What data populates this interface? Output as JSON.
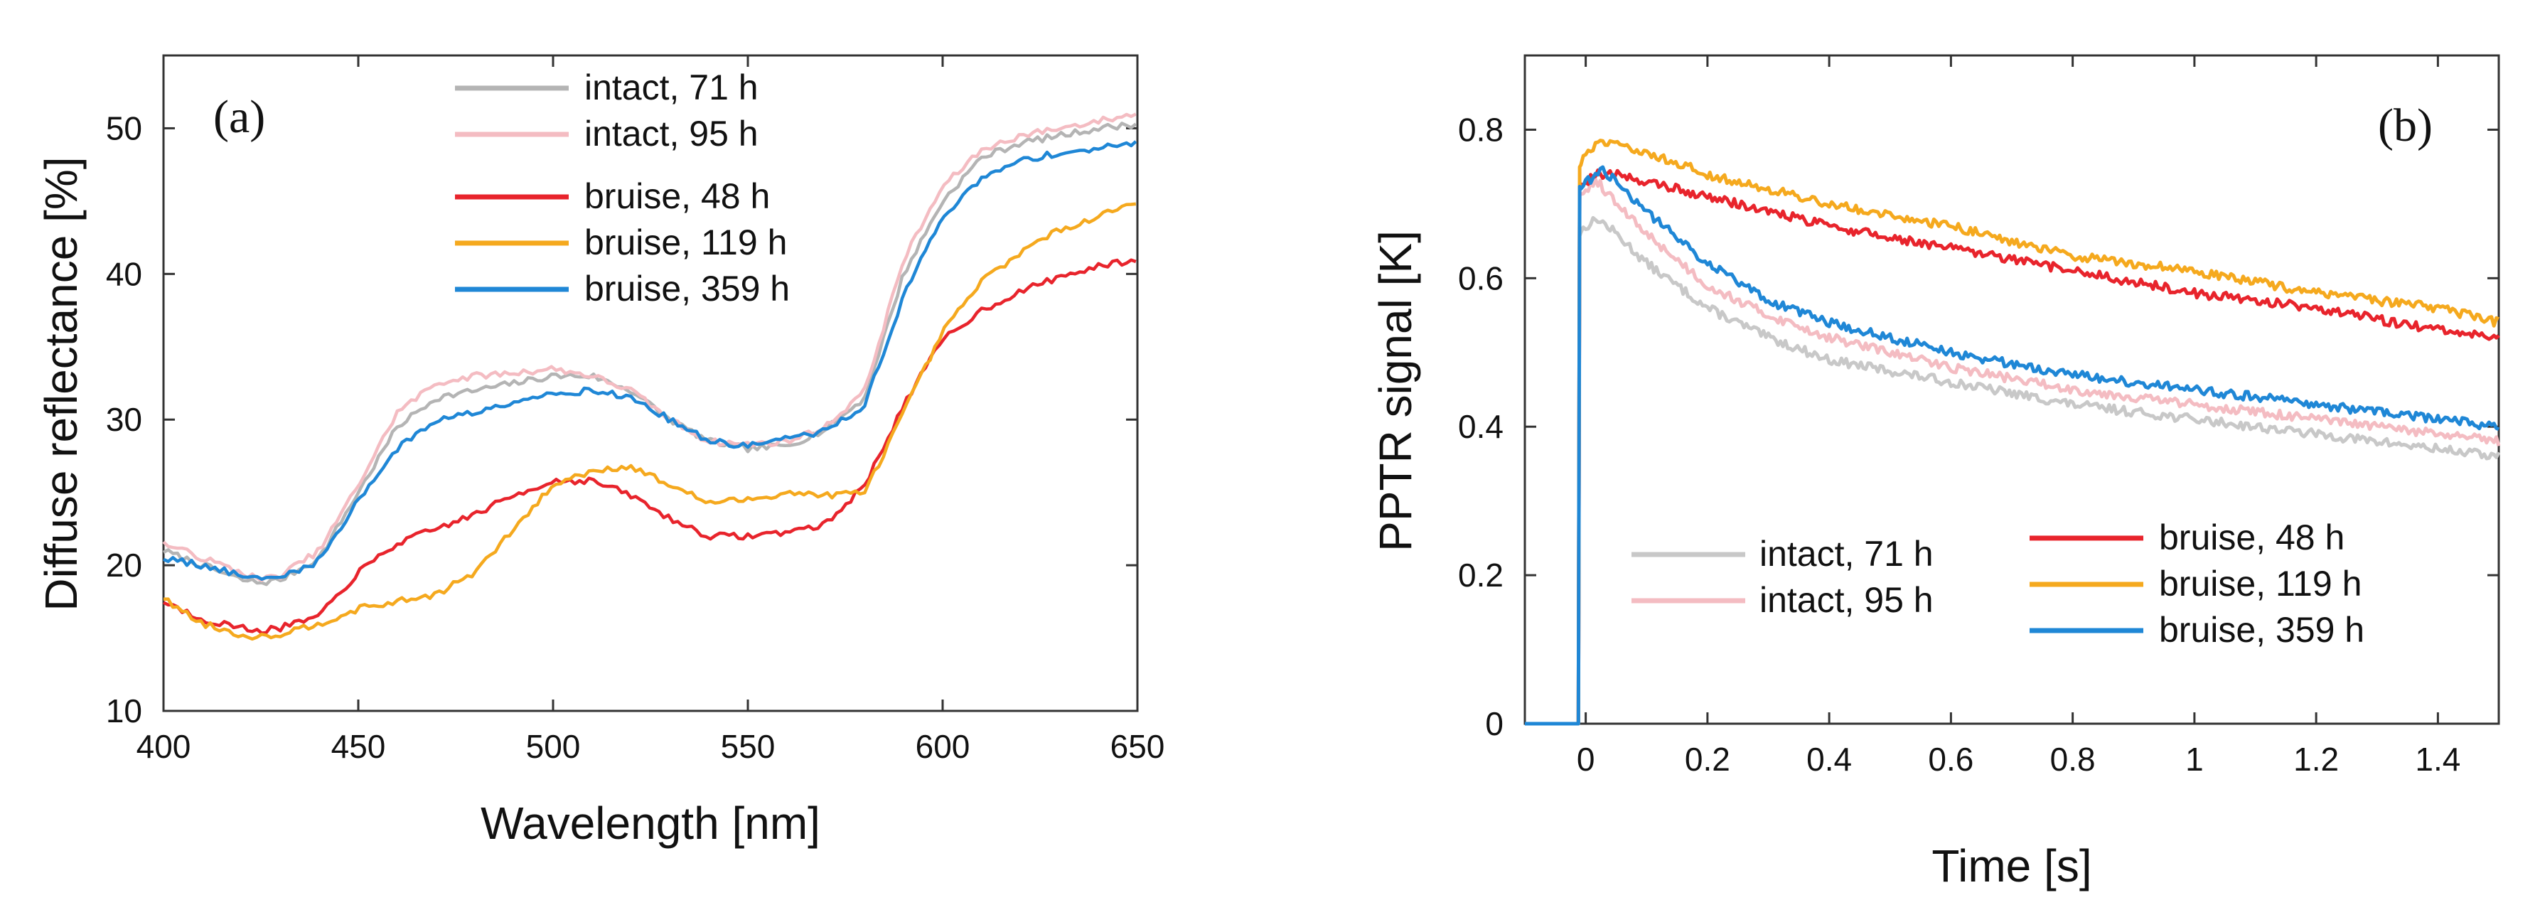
{
  "chart_data": [
    {
      "type": "line",
      "panel_label": "(a)",
      "xlabel": "Wavelength [nm]",
      "ylabel": "Diffuse reflectance [%]",
      "xlim": [
        400,
        650
      ],
      "ylim": [
        10,
        55
      ],
      "xticks": [
        400,
        450,
        500,
        550,
        600,
        650
      ],
      "xtick_labels": [
        "400",
        "450",
        "500",
        "550",
        "600",
        "650"
      ],
      "yticks": [
        10,
        20,
        30,
        40,
        50
      ],
      "ytick_labels": [
        "10",
        "20",
        "30",
        "40",
        "50"
      ],
      "legend_position": "top-center",
      "series": [
        {
          "name": "intact, 71 h",
          "color": "#b4b4b4",
          "x": [
            400,
            410,
            420,
            425,
            430,
            440,
            450,
            460,
            470,
            480,
            490,
            500,
            510,
            520,
            530,
            540,
            550,
            560,
            570,
            580,
            590,
            600,
            610,
            620,
            630,
            640,
            650
          ],
          "y": [
            21,
            20,
            19,
            18.8,
            19,
            20.5,
            25,
            29.5,
            31.5,
            32,
            32.5,
            33,
            33,
            32,
            30,
            28.5,
            28,
            28.2,
            29.3,
            31.5,
            40,
            45,
            48,
            49,
            49.5,
            50,
            50.3
          ]
        },
        {
          "name": "intact, 95 h",
          "color": "#f4bcc2",
          "x": [
            400,
            410,
            420,
            425,
            430,
            440,
            450,
            460,
            470,
            480,
            490,
            500,
            510,
            520,
            530,
            540,
            550,
            560,
            570,
            580,
            590,
            600,
            610,
            620,
            630,
            640,
            650
          ],
          "y": [
            21.5,
            20.5,
            19.5,
            19,
            19.3,
            21,
            25.5,
            30.5,
            32.5,
            33,
            33.2,
            33.5,
            33,
            32,
            30,
            28.5,
            28.3,
            28.5,
            29.5,
            32,
            41,
            46,
            48.5,
            49.5,
            50,
            50.5,
            51
          ]
        },
        {
          "name": "bruise, 48 h",
          "color": "#e8242c",
          "x": [
            400,
            410,
            420,
            425,
            430,
            440,
            450,
            460,
            470,
            480,
            490,
            500,
            510,
            520,
            530,
            540,
            550,
            560,
            570,
            580,
            590,
            600,
            610,
            620,
            630,
            640,
            650
          ],
          "y": [
            17.5,
            16.3,
            15.7,
            15.5,
            15.7,
            16.5,
            19.5,
            21.5,
            22.5,
            23.5,
            24.8,
            25.8,
            25.8,
            24.8,
            23.2,
            22,
            22,
            22.3,
            22.8,
            25.5,
            31,
            35.5,
            37.5,
            38.8,
            39.8,
            40.5,
            41
          ]
        },
        {
          "name": "bruise, 119 h",
          "color": "#f5a91e",
          "x": [
            400,
            410,
            420,
            425,
            430,
            440,
            450,
            460,
            470,
            480,
            490,
            500,
            510,
            520,
            530,
            540,
            550,
            560,
            570,
            580,
            590,
            600,
            610,
            620,
            630,
            640,
            650
          ],
          "y": [
            17.7,
            16,
            15.2,
            15.1,
            15.3,
            16,
            17,
            17.5,
            18,
            19.5,
            22.5,
            25.5,
            26.5,
            26.8,
            25.5,
            24.3,
            24.5,
            25,
            24.8,
            25,
            30.5,
            36,
            39.5,
            41.5,
            43,
            44,
            45
          ]
        },
        {
          "name": "bruise, 359 h",
          "color": "#1f87d6",
          "x": [
            400,
            410,
            420,
            425,
            430,
            440,
            450,
            460,
            470,
            480,
            490,
            500,
            510,
            520,
            530,
            540,
            550,
            560,
            570,
            580,
            590,
            600,
            610,
            620,
            630,
            640,
            650
          ],
          "y": [
            20.5,
            20,
            19.3,
            19,
            19.2,
            20.3,
            24.5,
            28,
            30,
            30.5,
            31.3,
            31.8,
            32,
            31.5,
            30,
            28.5,
            28.2,
            28.7,
            29.2,
            31,
            38.5,
            44,
            46.5,
            47.8,
            48.3,
            48.6,
            49
          ]
        }
      ]
    },
    {
      "type": "line",
      "panel_label": "(b)",
      "xlabel": "Time [s]",
      "ylabel": "PPTR signal [K]",
      "xlim": [
        -0.1,
        1.5
      ],
      "ylim": [
        0,
        0.9
      ],
      "xticks": [
        0,
        0.2,
        0.4,
        0.6,
        0.8,
        1,
        1.2,
        1.4
      ],
      "xtick_labels": [
        "0",
        "0.2",
        "0.4",
        "0.6",
        "0.8",
        "1",
        "1.2",
        "1.4"
      ],
      "yticks": [
        0,
        0.2,
        0.4,
        0.6,
        0.8
      ],
      "ytick_labels": [
        "0",
        "0.2",
        "0.4",
        "0.6",
        "0.8"
      ],
      "legend_position": "bottom",
      "series": [
        {
          "name": "intact, 71 h",
          "color": "#c8c8c8",
          "x": [
            -0.1,
            -0.01,
            -0.01,
            0,
            0.02,
            0.05,
            0.1,
            0.2,
            0.3,
            0.4,
            0.6,
            0.8,
            1,
            1.2,
            1.4,
            1.5
          ],
          "y": [
            0,
            0,
            0.66,
            0.67,
            0.68,
            0.66,
            0.62,
            0.56,
            0.52,
            0.49,
            0.46,
            0.43,
            0.41,
            0.39,
            0.37,
            0.36
          ]
        },
        {
          "name": "intact, 95 h",
          "color": "#f4bcc2",
          "x": [
            -0.1,
            -0.01,
            -0.01,
            0,
            0.02,
            0.05,
            0.1,
            0.2,
            0.3,
            0.4,
            0.6,
            0.8,
            1,
            1.2,
            1.4,
            1.5
          ],
          "y": [
            0,
            0,
            0.71,
            0.72,
            0.73,
            0.7,
            0.66,
            0.59,
            0.55,
            0.52,
            0.48,
            0.45,
            0.43,
            0.41,
            0.39,
            0.38
          ]
        },
        {
          "name": "bruise, 48 h",
          "color": "#e8242c",
          "x": [
            -0.1,
            -0.01,
            -0.01,
            0,
            0.02,
            0.05,
            0.1,
            0.2,
            0.3,
            0.4,
            0.6,
            0.8,
            1,
            1.2,
            1.4,
            1.5
          ],
          "y": [
            0,
            0,
            0.72,
            0.73,
            0.74,
            0.74,
            0.73,
            0.71,
            0.69,
            0.67,
            0.64,
            0.61,
            0.58,
            0.56,
            0.53,
            0.52
          ]
        },
        {
          "name": "bruise, 119 h",
          "color": "#f5a91e",
          "x": [
            -0.1,
            -0.01,
            -0.01,
            0,
            0.02,
            0.05,
            0.1,
            0.2,
            0.3,
            0.4,
            0.6,
            0.8,
            1,
            1.2,
            1.4,
            1.5
          ],
          "y": [
            0,
            0,
            0.75,
            0.77,
            0.78,
            0.78,
            0.77,
            0.74,
            0.72,
            0.7,
            0.67,
            0.63,
            0.61,
            0.58,
            0.56,
            0.54
          ]
        },
        {
          "name": "bruise, 359 h",
          "color": "#1f87d6",
          "x": [
            -0.1,
            -0.01,
            -0.01,
            0,
            0.02,
            0.03,
            0.05,
            0.1,
            0.2,
            0.3,
            0.4,
            0.6,
            0.8,
            1,
            1.2,
            1.4,
            1.5
          ],
          "y": [
            0,
            0,
            0.72,
            0.73,
            0.74,
            0.745,
            0.73,
            0.69,
            0.62,
            0.57,
            0.54,
            0.5,
            0.47,
            0.45,
            0.43,
            0.41,
            0.4
          ]
        }
      ]
    }
  ]
}
